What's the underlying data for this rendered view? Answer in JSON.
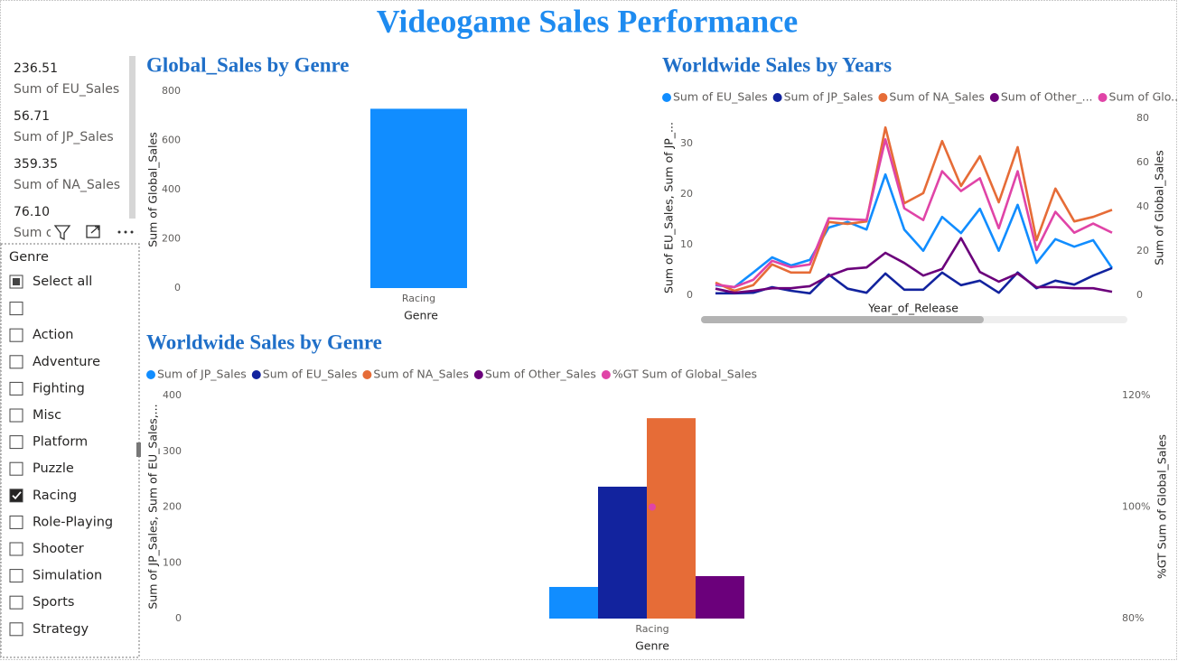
{
  "title": "Videogame Sales Performance",
  "cards": [
    {
      "value": "236.51",
      "label": "Sum of EU_Sales"
    },
    {
      "value": "56.71",
      "label": "Sum of JP_Sales"
    },
    {
      "value": "359.35",
      "label": "Sum of NA_Sales"
    },
    {
      "value": "76.10",
      "label": "Sum of Other_Sales"
    }
  ],
  "slicer": {
    "title": "Genre",
    "items": [
      {
        "label": "Select all",
        "state": "partial"
      },
      {
        "label": null
      },
      {
        "label": "Action"
      },
      {
        "label": "Adventure"
      },
      {
        "label": "Fighting"
      },
      {
        "label": "Misc"
      },
      {
        "label": "Platform"
      },
      {
        "label": "Puzzle"
      },
      {
        "label": "Racing",
        "state": "checked"
      },
      {
        "label": "Role-Playing"
      },
      {
        "label": "Shooter"
      },
      {
        "label": "Simulation"
      },
      {
        "label": "Sports"
      },
      {
        "label": "Strategy"
      }
    ]
  },
  "chart_data": [
    {
      "type": "bar",
      "title": "Global_Sales by Genre",
      "x_label": "Genre",
      "y_label": "Sum of Global_Sales",
      "categories": [
        "Racing"
      ],
      "values": [
        728.67
      ],
      "color": "#118DFF",
      "ylim": [
        0,
        800
      ],
      "yticks": [
        0,
        200,
        400,
        600,
        800
      ]
    },
    {
      "type": "line",
      "title": "Worldwide Sales by Years",
      "x_label": "Year_of_Release",
      "y_label": "Sum of EU_Sales, Sum of JP_...",
      "y2_label": "Sum of Global_Sales",
      "categories": [
        null,
        null,
        null,
        null,
        null,
        null,
        null,
        null,
        null,
        null,
        null,
        null,
        null,
        null,
        null,
        null,
        null,
        null,
        null,
        null,
        null,
        null
      ],
      "ylim": [
        0,
        35
      ],
      "yticks": [
        0,
        10,
        20,
        30
      ],
      "y2lim": [
        0,
        80
      ],
      "y2ticks": [
        0,
        20,
        40,
        60,
        80
      ],
      "series": [
        {
          "name": "Sum of EU_Sales",
          "color": "#118DFF",
          "values": [
            2.0,
            1.6,
            4.5,
            7.5,
            5.9,
            7.0,
            13.4,
            14.5,
            13.0,
            23.9,
            13.0,
            8.8,
            15.5,
            12.3,
            17.1,
            8.8,
            17.9,
            6.4,
            11.1,
            9.6,
            10.9,
            5.4
          ]
        },
        {
          "name": "Sum of JP_Sales",
          "color": "#12239E",
          "values": [
            0.4,
            0.4,
            0.5,
            1.6,
            0.9,
            0.4,
            4.1,
            1.3,
            0.5,
            4.3,
            1.1,
            1.1,
            4.5,
            2.0,
            2.9,
            0.5,
            4.5,
            1.4,
            2.9,
            2.1,
            3.9,
            5.4
          ]
        },
        {
          "name": "Sum of NA_Sales",
          "color": "#E66C37",
          "values": [
            2.5,
            0.9,
            2.0,
            6.1,
            4.5,
            4.5,
            14.5,
            14.1,
            14.6,
            33.2,
            18.2,
            20.2,
            30.5,
            21.6,
            27.5,
            18.4,
            29.3,
            10.9,
            21.1,
            14.6,
            15.5,
            16.9
          ]
        },
        {
          "name": "Sum of Other_...",
          "color": "#6B007B",
          "values": [
            1.3,
            0.5,
            0.9,
            1.4,
            1.4,
            1.8,
            3.8,
            5.2,
            5.5,
            8.4,
            6.4,
            3.9,
            5.2,
            11.3,
            4.6,
            2.7,
            4.3,
            1.6,
            1.6,
            1.4,
            1.4,
            0.7
          ]
        },
        {
          "name": "Sum of Glo...",
          "color": "#E044A7",
          "axis": "y2",
          "values": [
            4.9,
            3.7,
            7.0,
            15.6,
            12.7,
            13.9,
            34.8,
            34.4,
            34.0,
            70.5,
            39.3,
            34.0,
            56.1,
            47.1,
            52.9,
            30.3,
            56.1,
            20.5,
            37.7,
            28.3,
            32.4,
            28.3
          ]
        }
      ]
    },
    {
      "type": "combo",
      "title": "Worldwide Sales by Genre",
      "x_label": "Genre",
      "y_label": "Sum of JP_Sales, Sum of EU_Sales,...",
      "y2_label": "%GT Sum of Global_Sales",
      "categories": [
        "Racing"
      ],
      "ylim": [
        0,
        400
      ],
      "yticks": [
        0,
        100,
        200,
        300,
        400
      ],
      "y2lim": [
        80,
        120
      ],
      "y2ticks": [
        {
          "value": 80,
          "label": "80%"
        },
        {
          "value": 100,
          "label": "100%"
        },
        {
          "value": 120,
          "label": "120%"
        }
      ],
      "series": [
        {
          "name": "Sum of JP_Sales",
          "color": "#118DFF",
          "values": [
            56.71
          ]
        },
        {
          "name": "Sum of EU_Sales",
          "color": "#12239E",
          "values": [
            236.51
          ]
        },
        {
          "name": "Sum of NA_Sales",
          "color": "#E66C37",
          "values": [
            359.35
          ]
        },
        {
          "name": "Sum of Other_Sales",
          "color": "#6B007B",
          "values": [
            76.1
          ]
        },
        {
          "name": "%GT Sum of Global_Sales",
          "color": "#E044A7",
          "axis": "y2",
          "values": [
            100
          ]
        }
      ]
    }
  ]
}
